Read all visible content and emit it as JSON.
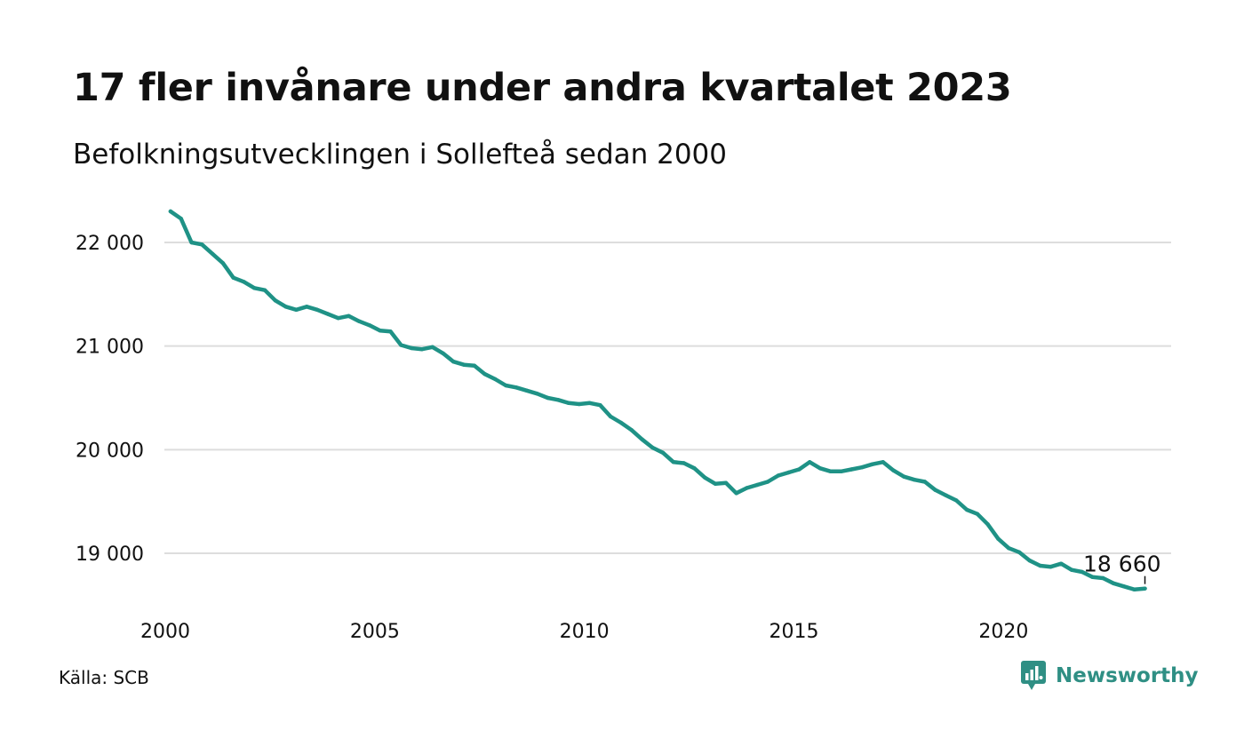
{
  "header": {
    "title": "17 fler invånare under andra kvartalet 2023",
    "subtitle": "Befolkningsutvecklingen i Sollefteå sedan 2000"
  },
  "footer": {
    "source": "Källa: SCB",
    "brand": "Newsworthy"
  },
  "colors": {
    "line": "#1f9286",
    "grid": "#dddddd",
    "brand": "#2f8f84"
  },
  "chart_data": {
    "type": "line",
    "title": "17 fler invånare under andra kvartalet 2023",
    "subtitle": "Befolkningsutvecklingen i Sollefteå sedan 2000",
    "xlabel": "",
    "ylabel": "",
    "x_ticks": [
      "2000",
      "2005",
      "2010",
      "2015",
      "2020"
    ],
    "y_ticks": [
      "19 000",
      "20 000",
      "21 000",
      "22 000"
    ],
    "y_tick_values": [
      19000,
      20000,
      21000,
      22000
    ],
    "xlim": [
      2000,
      2024
    ],
    "ylim": [
      18550,
      22350
    ],
    "grid": true,
    "end_label": "18 660",
    "series": [
      {
        "x": [
          2000.125,
          2000.375,
          2000.625,
          2000.875,
          2001.125,
          2001.375,
          2001.625,
          2001.875,
          2002.125,
          2002.375,
          2002.625,
          2002.875,
          2003.125,
          2003.375,
          2003.625,
          2003.875,
          2004.125,
          2004.375,
          2004.625,
          2004.875,
          2005.125,
          2005.375,
          2005.625,
          2005.875,
          2006.125,
          2006.375,
          2006.625,
          2006.875,
          2007.125,
          2007.375,
          2007.625,
          2007.875,
          2008.125,
          2008.375,
          2008.625,
          2008.875,
          2009.125,
          2009.375,
          2009.625,
          2009.875,
          2010.125,
          2010.375,
          2010.625,
          2010.875,
          2011.125,
          2011.375,
          2011.625,
          2011.875,
          2012.125,
          2012.375,
          2012.625,
          2012.875,
          2013.125,
          2013.375,
          2013.625,
          2013.875,
          2014.125,
          2014.375,
          2014.625,
          2014.875,
          2015.125,
          2015.375,
          2015.625,
          2015.875,
          2016.125,
          2016.375,
          2016.625,
          2016.875,
          2017.125,
          2017.375,
          2017.625,
          2017.875,
          2018.125,
          2018.375,
          2018.625,
          2018.875,
          2019.125,
          2019.375,
          2019.625,
          2019.875,
          2020.125,
          2020.375,
          2020.625,
          2020.875,
          2021.125,
          2021.375,
          2021.625,
          2021.875,
          2022.125,
          2022.375,
          2022.625,
          2022.875,
          2023.125,
          2023.375
        ],
        "values": [
          22300,
          22230,
          22000,
          21980,
          21890,
          21800,
          21660,
          21620,
          21560,
          21540,
          21440,
          21380,
          21350,
          21380,
          21350,
          21310,
          21270,
          21290,
          21240,
          21200,
          21150,
          21140,
          21010,
          20980,
          20970,
          20990,
          20930,
          20850,
          20820,
          20810,
          20730,
          20680,
          20620,
          20600,
          20570,
          20540,
          20500,
          20480,
          20450,
          20440,
          20450,
          20430,
          20320,
          20260,
          20190,
          20100,
          20020,
          19970,
          19880,
          19870,
          19820,
          19730,
          19670,
          19680,
          19580,
          19630,
          19660,
          19690,
          19750,
          19780,
          19810,
          19880,
          19820,
          19790,
          19790,
          19810,
          19830,
          19860,
          19880,
          19800,
          19740,
          19710,
          19690,
          19610,
          19560,
          19510,
          19420,
          19380,
          19280,
          19140,
          19050,
          19010,
          18930,
          18880,
          18870,
          18900,
          18840,
          18820,
          18770,
          18760,
          18710,
          18680,
          18650,
          18660
        ]
      }
    ]
  }
}
